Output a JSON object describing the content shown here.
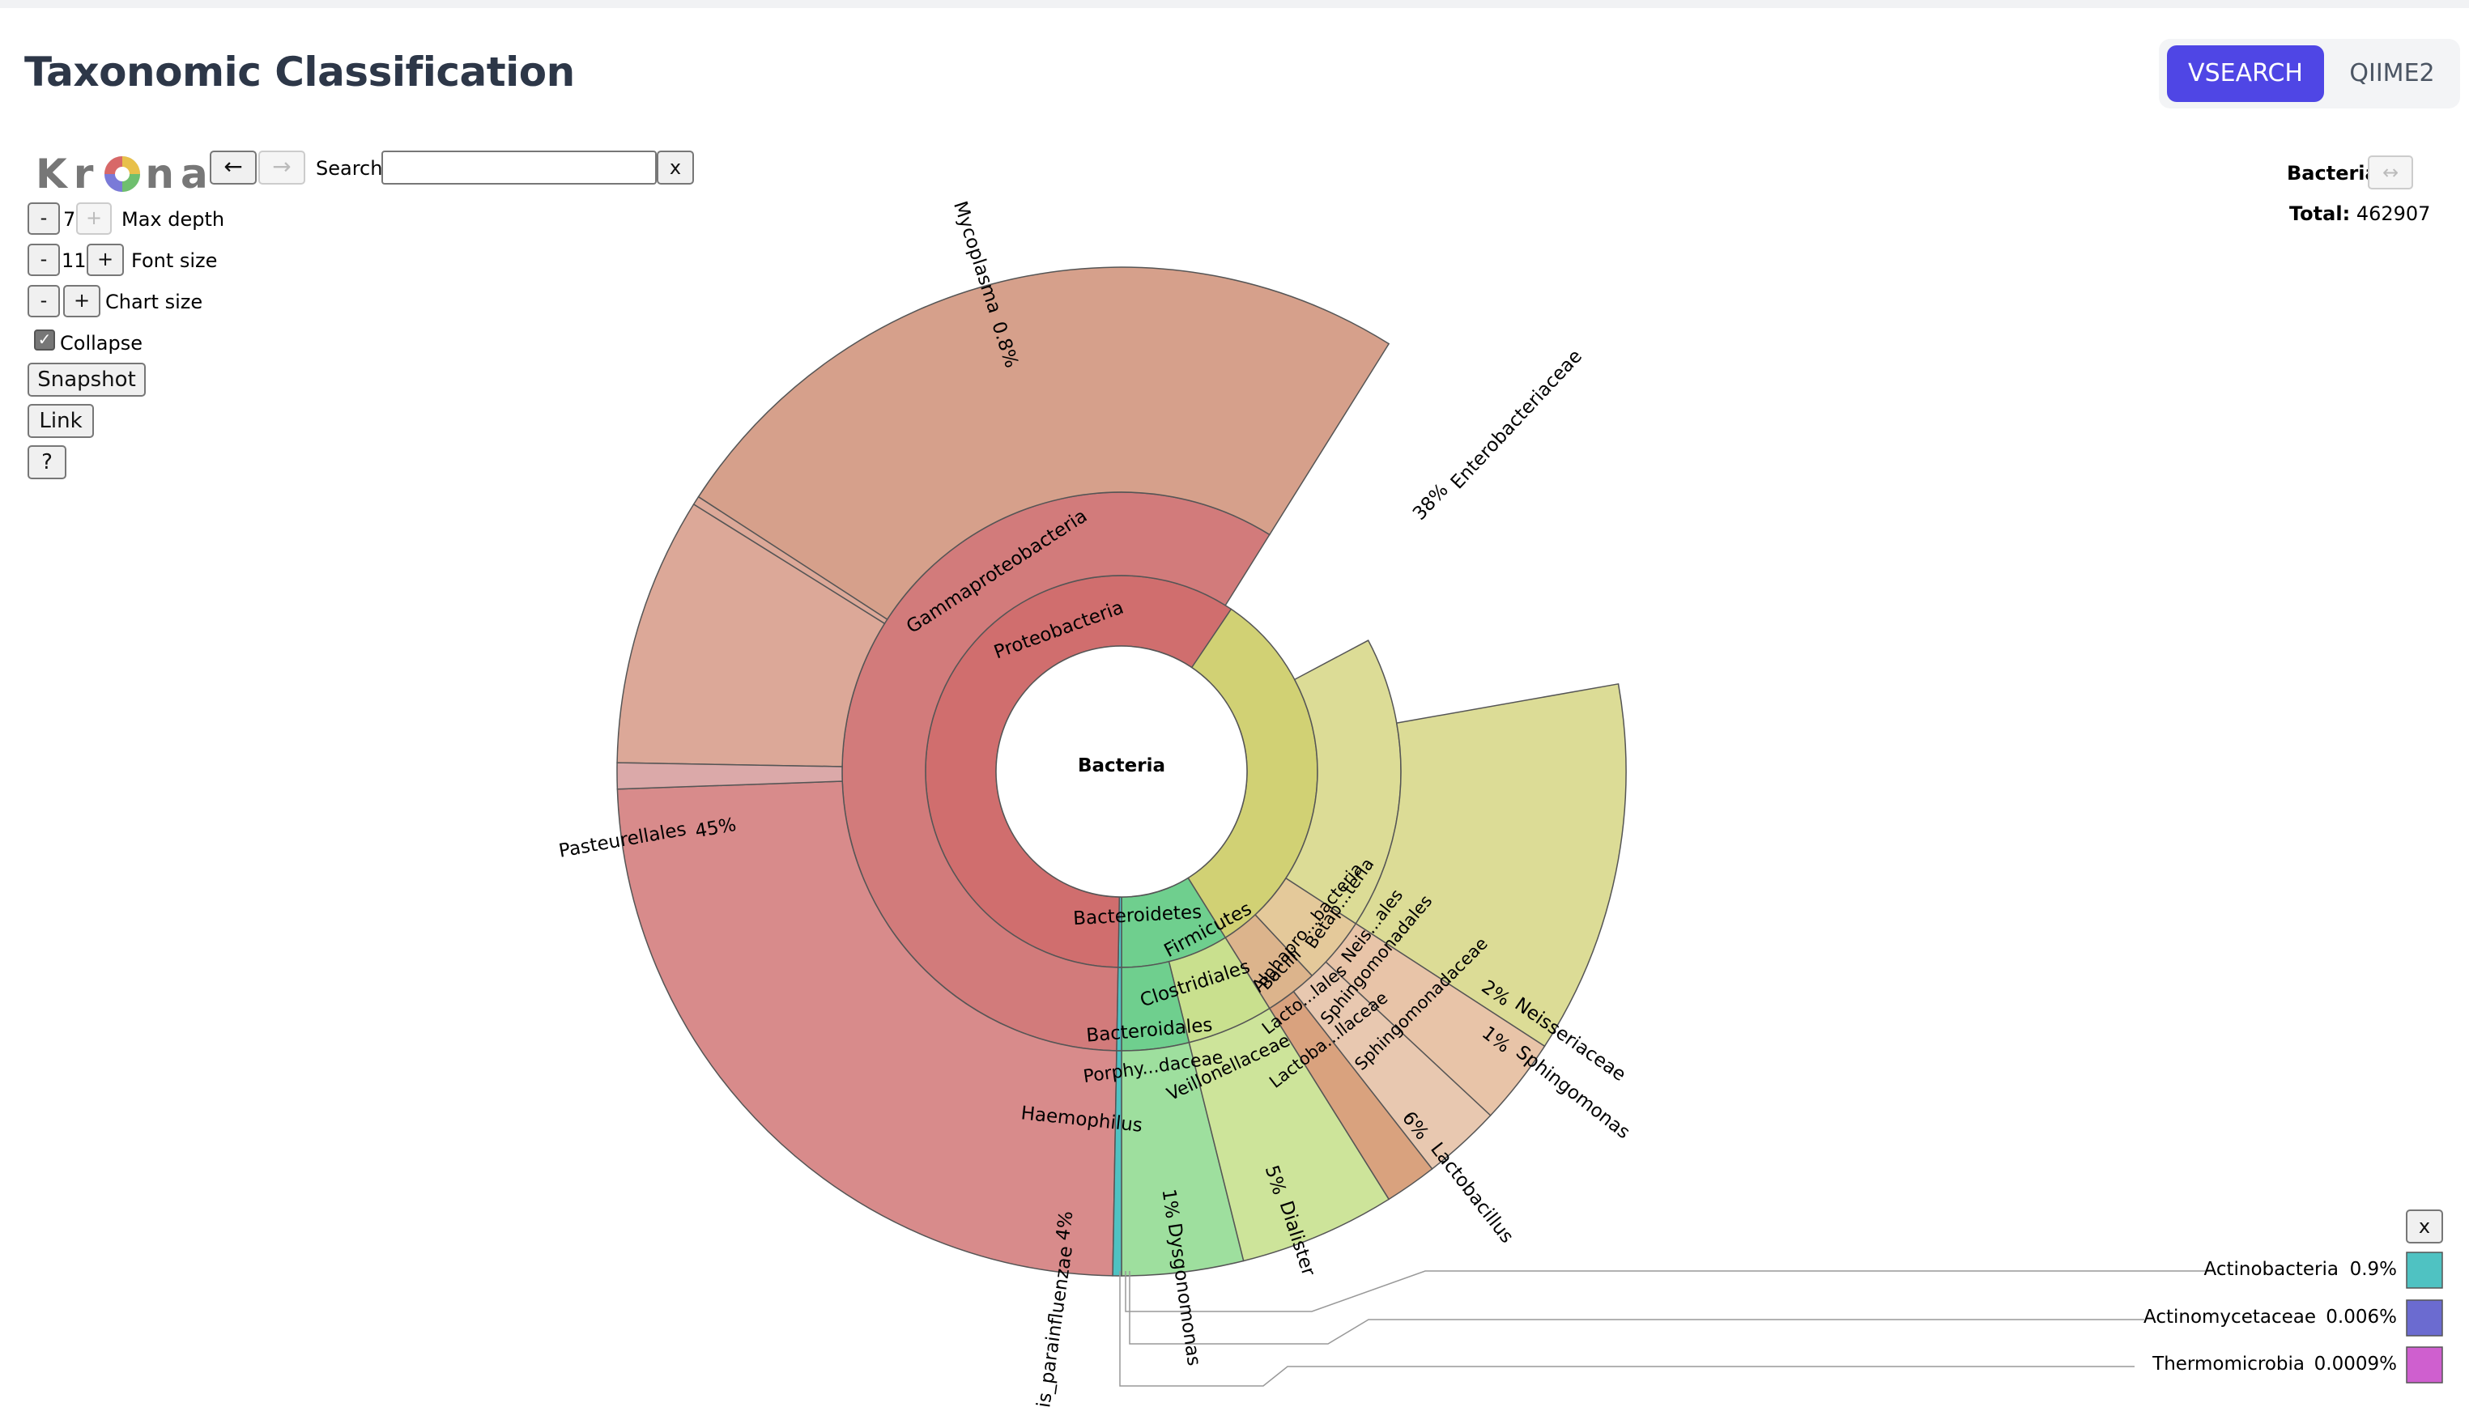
{
  "header": {
    "title": "Taxonomic Classification",
    "tabs": [
      {
        "label": "VSEARCH",
        "active": true
      },
      {
        "label": "QIIME2",
        "active": false
      }
    ]
  },
  "controls": {
    "logo": [
      "K",
      "r",
      "n",
      "a"
    ],
    "back_label": "←",
    "forward_label": "→",
    "search_label": "Search:",
    "search_value": "",
    "search_clear": "x",
    "max_depth": {
      "minus": "-",
      "value": "7",
      "plus": "+",
      "label": "Max depth"
    },
    "font_size": {
      "minus": "-",
      "value": "11",
      "plus": "+",
      "label": "Font size"
    },
    "chart_size": {
      "minus": "-",
      "plus": "+",
      "label": "Chart size"
    },
    "collapse_label": "Collapse",
    "collapse_checked": true,
    "snapshot_label": "Snapshot",
    "link_label": "Link",
    "help_label": "?"
  },
  "details": {
    "name": "Bacteria",
    "expand_icon": "↔",
    "total_label": "Total:",
    "total_value": "462907"
  },
  "colors": {
    "bacteria": "#ffffff",
    "proteobacteria": "#d06e6e",
    "gamma": "#d27b7b",
    "pasteurellales": "#d88b8b",
    "enterobacteriaceae": "#d6a08b",
    "mycoplasma": "#dca898",
    "parainfluenzae": "#e0a5a5",
    "firmicutes": "#d1d174",
    "bacilli": "#dcdc96",
    "clostridiales": "#c9e08e",
    "dialister": "#cde49a",
    "bacteroidetes": "#6fcf8e",
    "dysgonomonas": "#9edf9e",
    "actinobacteria": "#4fc2c2",
    "actinomycetaceae": "#6b6bd0",
    "thermomicrobia": "#cf5fcf",
    "neisseriaceae": "#e8c4a8"
  },
  "chart_data": {
    "type": "sunburst",
    "root": "Bacteria",
    "total": 462907,
    "rings": {
      "inner_labels": [
        "Proteobacteria",
        "Gammaproteobacteria",
        "Bacteroidetes",
        "Firmicutes",
        "Bacteroidales",
        "Clostridiales",
        "Bacilli",
        "Alphapro...bacteria",
        "Betap...teria"
      ],
      "order_labels": [
        "Pasteurellales",
        "Porphy...daceae",
        "Veillonellaceae",
        "Lacto...lales",
        "Lactoba...llaceae",
        "Sphingomonadales",
        "Sphingomonadaceae",
        "Neis...ales"
      ],
      "leaf_labels": [
        {
          "name": "Pasteurellales",
          "pct": "45%"
        },
        {
          "name": "Enterobacteriaceae",
          "pct": "38%"
        },
        {
          "name": "Mycoplasma",
          "pct": "0.8%"
        },
        {
          "name": "Lactobacillus",
          "pct": "6%"
        },
        {
          "name": "Dialister",
          "pct": "5%"
        },
        {
          "name": "Dysgonomonas",
          "pct": "1%"
        },
        {
          "name": "Neisseriaceae",
          "pct": "2%"
        },
        {
          "name": "Sphingomonas",
          "pct": "1%"
        },
        {
          "name": "is_parainfluenzae",
          "pct": "4%"
        },
        {
          "name": "Haemophilus",
          "pct": ""
        }
      ]
    },
    "legend": [
      {
        "name": "Actinobacteria",
        "pct": "0.9%"
      },
      {
        "name": "Actinomycetaceae",
        "pct": "0.006%"
      },
      {
        "name": "Thermomicrobia",
        "pct": "0.0009%"
      }
    ],
    "legend_close": "x"
  }
}
